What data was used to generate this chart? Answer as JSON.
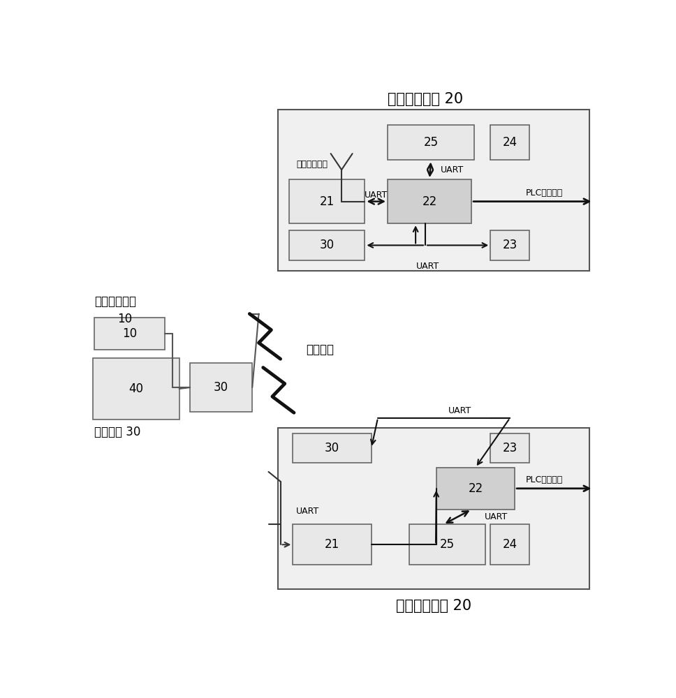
{
  "bg_color": "#ffffff",
  "title_top": "定位循迹装置 20",
  "title_bottom": "定位循迹装置 20",
  "label_beidou_station": "北斗定位基站",
  "label_master": "主控平台 30",
  "label_adhoc": "自组网络",
  "label_antenna_top": "北斗接收天线",
  "label_plc": "PLC控制指令",
  "label_uart": "UART",
  "box_fill": "#e8e8e8",
  "box_edge": "#666666",
  "box22_fill": "#d0d0d0",
  "outer_box_fill": "#f0f0f0",
  "outer_box_edge": "#555555",
  "font_size_title": 15,
  "font_size_label": 12,
  "font_size_box": 12,
  "font_size_uart": 9,
  "arrow_color": "#111111",
  "line_color": "#555555"
}
